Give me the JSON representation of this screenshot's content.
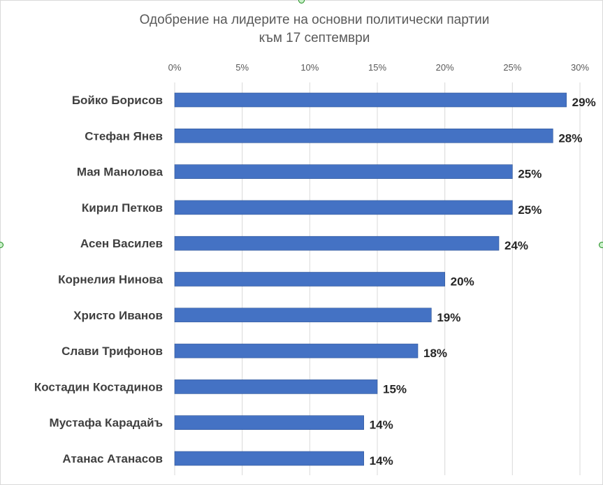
{
  "chart_data": {
    "type": "bar",
    "orientation": "horizontal",
    "title": "Одобрение на лидерите на основни политически партии",
    "subtitle": "към 17 септември",
    "xlim": [
      0,
      30
    ],
    "xticks": [
      "0%",
      "5%",
      "10%",
      "15%",
      "20%",
      "25%",
      "30%"
    ],
    "xtick_values": [
      0,
      5,
      10,
      15,
      20,
      25,
      30
    ],
    "grid": true,
    "bar_color": "#4472C4",
    "categories": [
      "Бойко Борисов",
      "Стефан Янев",
      "Мая Манолова",
      "Кирил Петков",
      "Асен Василев",
      "Корнелия Нинова",
      "Христо Иванов",
      "Слави Трифонов",
      "Костадин Костадинов",
      "Мустафа Карадайъ",
      "Атанас Атанасов"
    ],
    "values": [
      29,
      28,
      25,
      25,
      24,
      20,
      19,
      18,
      15,
      14,
      14
    ],
    "data_labels": [
      "29%",
      "28%",
      "25%",
      "25%",
      "24%",
      "20%",
      "19%",
      "18%",
      "15%",
      "14%",
      "14%"
    ]
  }
}
